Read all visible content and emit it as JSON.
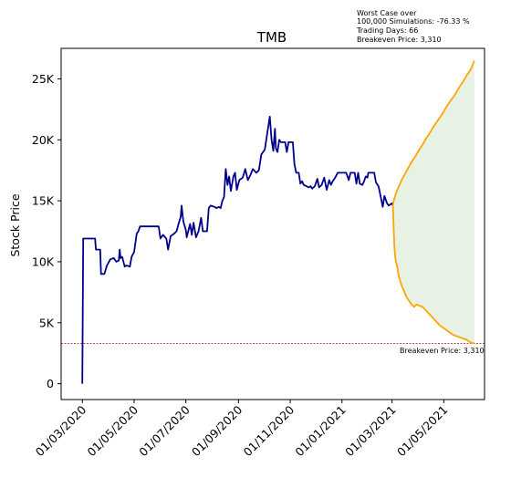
{
  "chart_data": {
    "type": "line",
    "title": "TMB",
    "xlabel": "",
    "ylabel": "Stock Price",
    "ylim": [
      -1300,
      27500
    ],
    "y_ticks": [
      0,
      5000,
      10000,
      15000,
      20000,
      25000
    ],
    "y_tick_labels": [
      "0",
      "5K",
      "10K",
      "15K",
      "20K",
      "25K"
    ],
    "x_ticks": [
      "2020-03-01",
      "2020-05-01",
      "2020-07-01",
      "2020-09-01",
      "2020-11-01",
      "2021-01-01",
      "2021-03-01",
      "2021-05-01"
    ],
    "x_tick_labels": [
      "01/03/2020",
      "01/05/2020",
      "01/07/2020",
      "01/09/2020",
      "01/11/2020",
      "01/01/2021",
      "01/03/2021",
      "01/05/2021"
    ],
    "xlim": [
      "2020-02-05",
      "2021-06-18"
    ],
    "grid": false,
    "annotation": {
      "lines": [
        "Worst Case over",
        "100,000 Simulations: -76.33 %",
        "Trading Days: 66",
        "Breakeven Price: 3,310"
      ]
    },
    "breakeven": {
      "value": 3310,
      "label": "Breakeven Price: 3,310"
    },
    "colors": {
      "history": "#00008b",
      "projection": "#ffa500",
      "band": "#e3f0e0",
      "breakeven": "#cc0000"
    },
    "series": [
      {
        "kind": "history",
        "points": [
          [
            "2020-03-01",
            0
          ],
          [
            "2020-03-02",
            11900
          ],
          [
            "2020-03-16",
            11900
          ],
          [
            "2020-03-17",
            11000
          ],
          [
            "2020-03-22",
            11000
          ],
          [
            "2020-03-23",
            9000
          ],
          [
            "2020-03-27",
            9000
          ],
          [
            "2020-03-30",
            9700
          ],
          [
            "2020-04-03",
            10200
          ],
          [
            "2020-04-07",
            10300
          ],
          [
            "2020-04-10",
            10000
          ],
          [
            "2020-04-13",
            10100
          ],
          [
            "2020-04-14",
            11000
          ],
          [
            "2020-04-15",
            10300
          ],
          [
            "2020-04-17",
            10400
          ],
          [
            "2020-04-20",
            9600
          ],
          [
            "2020-04-22",
            9700
          ],
          [
            "2020-04-26",
            9600
          ],
          [
            "2020-04-28",
            10400
          ],
          [
            "2020-05-01",
            10800
          ],
          [
            "2020-05-04",
            12300
          ],
          [
            "2020-05-06",
            12500
          ],
          [
            "2020-05-08",
            12900
          ],
          [
            "2020-05-30",
            12900
          ],
          [
            "2020-06-01",
            11900
          ],
          [
            "2020-06-04",
            12200
          ],
          [
            "2020-06-08",
            11900
          ],
          [
            "2020-06-10",
            11000
          ],
          [
            "2020-06-13",
            12100
          ],
          [
            "2020-06-17",
            12300
          ],
          [
            "2020-06-20",
            12500
          ],
          [
            "2020-06-22",
            13000
          ],
          [
            "2020-06-25",
            13700
          ],
          [
            "2020-06-26",
            14600
          ],
          [
            "2020-06-28",
            13300
          ],
          [
            "2020-07-01",
            12600
          ],
          [
            "2020-07-02",
            12000
          ],
          [
            "2020-07-06",
            13100
          ],
          [
            "2020-07-08",
            12200
          ],
          [
            "2020-07-10",
            13200
          ],
          [
            "2020-07-13",
            12000
          ],
          [
            "2020-07-16",
            12500
          ],
          [
            "2020-07-19",
            13600
          ],
          [
            "2020-07-21",
            12500
          ],
          [
            "2020-07-26",
            12500
          ],
          [
            "2020-07-28",
            14400
          ],
          [
            "2020-07-30",
            14600
          ],
          [
            "2020-08-04",
            14500
          ],
          [
            "2020-08-06",
            14400
          ],
          [
            "2020-08-09",
            14500
          ],
          [
            "2020-08-11",
            14400
          ],
          [
            "2020-08-13",
            15000
          ],
          [
            "2020-08-15",
            15300
          ],
          [
            "2020-08-17",
            17600
          ],
          [
            "2020-08-19",
            16300
          ],
          [
            "2020-08-21",
            17000
          ],
          [
            "2020-08-23",
            15800
          ],
          [
            "2020-08-26",
            17000
          ],
          [
            "2020-08-28",
            17300
          ],
          [
            "2020-08-30",
            15900
          ],
          [
            "2020-09-02",
            16700
          ],
          [
            "2020-09-06",
            16900
          ],
          [
            "2020-09-09",
            17600
          ],
          [
            "2020-09-12",
            16700
          ],
          [
            "2020-09-15",
            17100
          ],
          [
            "2020-09-18",
            17600
          ],
          [
            "2020-09-22",
            17300
          ],
          [
            "2020-09-25",
            17500
          ],
          [
            "2020-09-28",
            18800
          ],
          [
            "2020-10-02",
            19200
          ],
          [
            "2020-10-05",
            20600
          ],
          [
            "2020-10-08",
            21900
          ],
          [
            "2020-10-10",
            20000
          ],
          [
            "2020-10-12",
            19100
          ],
          [
            "2020-10-14",
            20900
          ],
          [
            "2020-10-15",
            19300
          ],
          [
            "2020-10-17",
            19000
          ],
          [
            "2020-10-19",
            20000
          ],
          [
            "2020-10-21",
            19800
          ],
          [
            "2020-10-26",
            19800
          ],
          [
            "2020-10-28",
            19000
          ],
          [
            "2020-10-30",
            19800
          ],
          [
            "2020-11-01",
            19800
          ],
          [
            "2020-11-04",
            19800
          ],
          [
            "2020-11-06",
            18000
          ],
          [
            "2020-11-08",
            17300
          ],
          [
            "2020-11-11",
            17300
          ],
          [
            "2020-11-13",
            16400
          ],
          [
            "2020-11-15",
            16600
          ],
          [
            "2020-11-17",
            16300
          ],
          [
            "2020-11-20",
            16200
          ],
          [
            "2020-11-23",
            16100
          ],
          [
            "2020-11-25",
            16200
          ],
          [
            "2020-11-27",
            16000
          ],
          [
            "2020-11-30",
            16200
          ],
          [
            "2020-12-03",
            16800
          ],
          [
            "2020-12-05",
            16100
          ],
          [
            "2020-12-08",
            16300
          ],
          [
            "2020-12-11",
            16900
          ],
          [
            "2020-12-14",
            15900
          ],
          [
            "2020-12-17",
            16700
          ],
          [
            "2020-12-19",
            16300
          ],
          [
            "2020-12-21",
            16600
          ],
          [
            "2020-12-24",
            16900
          ],
          [
            "2020-12-27",
            17300
          ],
          [
            "2020-12-31",
            17300
          ],
          [
            "2021-01-06",
            17300
          ],
          [
            "2021-01-09",
            16700
          ],
          [
            "2021-01-11",
            17300
          ],
          [
            "2021-01-16",
            17300
          ],
          [
            "2021-01-18",
            16400
          ],
          [
            "2021-01-20",
            17300
          ],
          [
            "2021-01-22",
            16400
          ],
          [
            "2021-01-25",
            16300
          ],
          [
            "2021-01-27",
            16600
          ],
          [
            "2021-01-29",
            17000
          ],
          [
            "2021-01-31",
            16900
          ],
          [
            "2021-02-01",
            17300
          ],
          [
            "2021-02-08",
            17300
          ],
          [
            "2021-02-10",
            16500
          ],
          [
            "2021-02-13",
            16200
          ],
          [
            "2021-02-16",
            15200
          ],
          [
            "2021-02-18",
            14500
          ],
          [
            "2021-02-20",
            15400
          ],
          [
            "2021-02-23",
            14800
          ],
          [
            "2021-02-25",
            14600
          ],
          [
            "2021-03-01",
            14800
          ],
          [
            "2021-03-02",
            14600
          ]
        ]
      },
      {
        "kind": "projection-upper",
        "points": [
          [
            "2021-03-02",
            14600
          ],
          [
            "2021-03-03",
            15000
          ],
          [
            "2021-03-05",
            15500
          ],
          [
            "2021-03-09",
            16200
          ],
          [
            "2021-03-13",
            16800
          ],
          [
            "2021-03-17",
            17300
          ],
          [
            "2021-03-21",
            17800
          ],
          [
            "2021-03-25",
            18300
          ],
          [
            "2021-03-29",
            18700
          ],
          [
            "2021-04-02",
            19200
          ],
          [
            "2021-04-06",
            19600
          ],
          [
            "2021-04-10",
            20100
          ],
          [
            "2021-04-14",
            20500
          ],
          [
            "2021-04-18",
            21000
          ],
          [
            "2021-04-22",
            21400
          ],
          [
            "2021-04-26",
            21800
          ],
          [
            "2021-04-30",
            22200
          ],
          [
            "2021-05-04",
            22700
          ],
          [
            "2021-05-08",
            23100
          ],
          [
            "2021-05-12",
            23500
          ],
          [
            "2021-05-16",
            23900
          ],
          [
            "2021-05-20",
            24400
          ],
          [
            "2021-05-24",
            24800
          ],
          [
            "2021-05-28",
            25300
          ],
          [
            "2021-06-01",
            25700
          ],
          [
            "2021-06-03",
            26000
          ],
          [
            "2021-06-06",
            26500
          ]
        ]
      },
      {
        "kind": "projection-lower",
        "points": [
          [
            "2021-03-02",
            14600
          ],
          [
            "2021-03-03",
            12600
          ],
          [
            "2021-03-04",
            11000
          ],
          [
            "2021-03-05",
            10200
          ],
          [
            "2021-03-07",
            9600
          ],
          [
            "2021-03-09",
            8800
          ],
          [
            "2021-03-12",
            8100
          ],
          [
            "2021-03-15",
            7600
          ],
          [
            "2021-03-18",
            7100
          ],
          [
            "2021-03-21",
            6800
          ],
          [
            "2021-03-24",
            6500
          ],
          [
            "2021-03-27",
            6300
          ],
          [
            "2021-03-30",
            6500
          ],
          [
            "2021-04-02",
            6400
          ],
          [
            "2021-04-06",
            6300
          ],
          [
            "2021-04-10",
            6000
          ],
          [
            "2021-04-14",
            5700
          ],
          [
            "2021-04-18",
            5400
          ],
          [
            "2021-04-22",
            5100
          ],
          [
            "2021-04-26",
            4800
          ],
          [
            "2021-04-30",
            4600
          ],
          [
            "2021-05-04",
            4400
          ],
          [
            "2021-05-08",
            4200
          ],
          [
            "2021-05-12",
            4000
          ],
          [
            "2021-05-16",
            3900
          ],
          [
            "2021-05-20",
            3800
          ],
          [
            "2021-05-24",
            3700
          ],
          [
            "2021-05-28",
            3600
          ],
          [
            "2021-06-01",
            3400
          ],
          [
            "2021-06-06",
            3300
          ]
        ]
      }
    ]
  }
}
